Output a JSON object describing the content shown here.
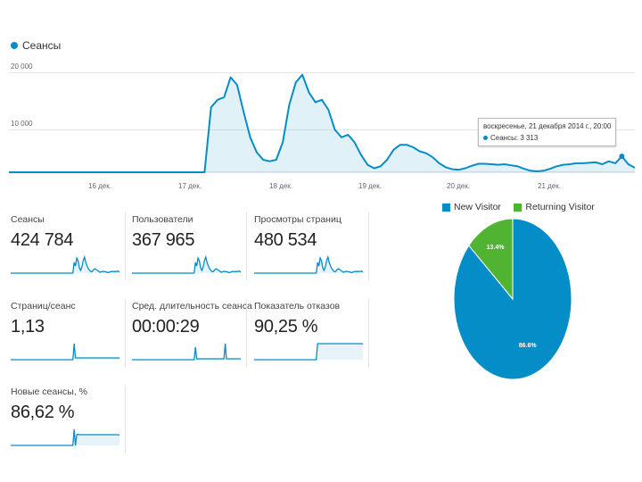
{
  "legend": {
    "label": "Сеансы",
    "color": "#058dc7"
  },
  "chart_data": [
    {
      "type": "area",
      "title": "Сеансы",
      "yticks": [
        "20 000",
        "10 000"
      ],
      "ylim": [
        0,
        20000
      ],
      "xticks": [
        "16 дек.",
        "17 дек.",
        "18 дек.",
        "19 дек.",
        "20 дек.",
        "21 дек."
      ],
      "series": [
        {
          "name": "Сеансы",
          "color": "#058dc7",
          "x_hours": [
            0,
            6,
            12,
            18,
            24,
            30,
            36,
            42,
            48,
            54,
            60,
            62,
            64,
            66,
            68,
            70,
            72,
            74,
            76,
            78,
            80,
            82,
            84,
            86,
            88,
            90,
            92,
            94,
            96,
            98,
            100,
            102,
            104,
            106,
            108,
            110,
            112,
            114,
            116,
            118,
            120,
            122,
            124,
            126,
            128,
            130,
            132,
            134,
            136,
            138,
            140,
            142,
            144,
            146,
            148,
            150,
            152,
            154,
            156,
            158,
            160,
            162,
            164,
            166,
            168,
            170,
            172,
            174,
            176,
            178,
            180,
            182,
            184,
            186,
            188,
            190,
            192
          ],
          "values": [
            0,
            0,
            0,
            0,
            0,
            0,
            0,
            0,
            0,
            0,
            0,
            13000,
            14500,
            15000,
            19000,
            17500,
            12000,
            7000,
            4000,
            2500,
            2200,
            2500,
            6000,
            13500,
            18000,
            19500,
            16000,
            14000,
            14500,
            12500,
            8500,
            7000,
            7500,
            6000,
            3500,
            1500,
            800,
            1200,
            2500,
            4500,
            5500,
            5500,
            5000,
            4200,
            3800,
            3000,
            1800,
            1000,
            600,
            500,
            800,
            1300,
            1700,
            1700,
            1600,
            1500,
            1600,
            1400,
            1200,
            700,
            300,
            200,
            300,
            700,
            1200,
            1500,
            1600,
            1800,
            1800,
            1900,
            2000,
            1600,
            2200,
            1800,
            3200,
            1600,
            900
          ]
        }
      ],
      "tooltip": {
        "title": "воскресенье, 21 декабря 2014 г., 20:00",
        "series_label": "Сеансы:",
        "value": "3 313"
      }
    },
    {
      "type": "pie",
      "legend": [
        "New Visitor",
        "Returning Visitor"
      ],
      "colors": [
        "#058dc7",
        "#50b432"
      ],
      "values": [
        86.6,
        13.4
      ],
      "labels": [
        "86.6%",
        "13.4%"
      ]
    }
  ],
  "metrics": [
    {
      "title": "Сеансы",
      "value": "424 784",
      "spark": [
        0,
        0,
        0,
        0,
        0,
        0,
        0,
        0,
        0,
        0,
        0,
        0,
        0,
        0,
        0,
        0,
        0,
        0,
        0,
        0,
        0,
        0,
        0,
        0,
        0,
        0,
        0,
        0,
        0,
        0,
        0,
        0,
        0,
        0,
        0,
        0,
        0,
        0,
        0,
        0,
        0,
        0,
        0,
        0,
        0,
        0,
        0,
        0,
        0,
        0.6,
        0.4,
        0.85,
        0.7,
        0.3,
        0.15,
        0.35,
        0.7,
        0.9,
        0.6,
        0.4,
        0.25,
        0.15,
        0.08,
        0.1,
        0.2,
        0.25,
        0.2,
        0.15,
        0.1,
        0.05,
        0.08,
        0.1,
        0.09,
        0.08,
        0.06,
        0.03,
        0.05,
        0.08,
        0.09,
        0.1,
        0.08,
        0.1,
        0.09,
        0.12,
        0.06
      ]
    },
    {
      "title": "Пользователи",
      "value": "367 965",
      "spark": [
        0,
        0,
        0,
        0,
        0,
        0,
        0,
        0,
        0,
        0,
        0,
        0,
        0,
        0,
        0,
        0,
        0,
        0,
        0,
        0,
        0,
        0,
        0,
        0,
        0,
        0,
        0,
        0,
        0,
        0,
        0,
        0,
        0,
        0,
        0,
        0,
        0,
        0,
        0,
        0,
        0,
        0,
        0,
        0,
        0,
        0,
        0,
        0,
        0,
        0.6,
        0.4,
        0.85,
        0.7,
        0.3,
        0.15,
        0.35,
        0.7,
        0.9,
        0.6,
        0.4,
        0.25,
        0.15,
        0.08,
        0.1,
        0.2,
        0.25,
        0.2,
        0.15,
        0.1,
        0.05,
        0.08,
        0.1,
        0.09,
        0.08,
        0.06,
        0.03,
        0.05,
        0.08,
        0.09,
        0.1,
        0.08,
        0.1,
        0.09,
        0.12,
        0.06
      ]
    },
    {
      "title": "Просмотры страниц",
      "value": "480 534",
      "spark": [
        0,
        0,
        0,
        0,
        0,
        0,
        0,
        0,
        0,
        0,
        0,
        0,
        0,
        0,
        0,
        0,
        0,
        0,
        0,
        0,
        0,
        0,
        0,
        0,
        0,
        0,
        0,
        0,
        0,
        0,
        0,
        0,
        0,
        0,
        0,
        0,
        0,
        0,
        0,
        0,
        0,
        0,
        0,
        0,
        0,
        0,
        0,
        0,
        0,
        0.6,
        0.4,
        0.85,
        0.7,
        0.3,
        0.15,
        0.35,
        0.7,
        0.9,
        0.6,
        0.4,
        0.25,
        0.15,
        0.08,
        0.1,
        0.2,
        0.25,
        0.2,
        0.15,
        0.1,
        0.05,
        0.08,
        0.1,
        0.09,
        0.08,
        0.06,
        0.03,
        0.05,
        0.08,
        0.09,
        0.1,
        0.08,
        0.1,
        0.09,
        0.12,
        0.06
      ]
    },
    {
      "title": "Страниц/сеанс",
      "value": "1,13",
      "spark": [
        0,
        0,
        0,
        0,
        0,
        0,
        0,
        0,
        0,
        0,
        0,
        0,
        0,
        0,
        0,
        0,
        0,
        0,
        0,
        0,
        0,
        0,
        0,
        0,
        0,
        0,
        0,
        0,
        0,
        0,
        0,
        0,
        0,
        0,
        0,
        0,
        0,
        0,
        0,
        0,
        0,
        0,
        0,
        0,
        0,
        0,
        0,
        0,
        0,
        0.9,
        0.1,
        0.1,
        0.1,
        0.1,
        0.1,
        0.1,
        0.1,
        0.1,
        0.1,
        0.1,
        0.1,
        0.1,
        0.1,
        0.1,
        0.1,
        0.1,
        0.1,
        0.1,
        0.1,
        0.1,
        0.1,
        0.1,
        0.1,
        0.1,
        0.1,
        0.1,
        0.1,
        0.1,
        0.1,
        0.1,
        0.1,
        0.1,
        0.1,
        0.1,
        0.1
      ]
    },
    {
      "title": "Сред. длительность сеанса",
      "value": "00:00:29",
      "spark": [
        0,
        0,
        0,
        0,
        0,
        0,
        0,
        0,
        0,
        0,
        0,
        0,
        0,
        0,
        0,
        0,
        0,
        0,
        0,
        0,
        0,
        0,
        0,
        0,
        0,
        0,
        0,
        0,
        0,
        0,
        0,
        0,
        0,
        0,
        0,
        0,
        0,
        0,
        0,
        0,
        0,
        0,
        0,
        0,
        0,
        0,
        0,
        0,
        0,
        0.7,
        0.05,
        0.05,
        0.05,
        0.05,
        0.05,
        0.05,
        0.05,
        0.05,
        0.05,
        0.05,
        0.05,
        0.05,
        0.05,
        0.05,
        0.05,
        0.05,
        0.05,
        0.05,
        0.05,
        0.05,
        0.05,
        0.05,
        0.9,
        0.05,
        0.05,
        0.05,
        0.05,
        0.05,
        0.05,
        0.05,
        0.05,
        0.05,
        0.05,
        0.05,
        0.05
      ]
    },
    {
      "title": "Показатель отказов",
      "value": "90,25 %",
      "spark": [
        0,
        0,
        0,
        0,
        0,
        0,
        0,
        0,
        0,
        0,
        0,
        0,
        0,
        0,
        0,
        0,
        0,
        0,
        0,
        0,
        0,
        0,
        0,
        0,
        0,
        0,
        0,
        0,
        0,
        0,
        0,
        0,
        0,
        0,
        0,
        0,
        0,
        0,
        0,
        0,
        0,
        0,
        0,
        0,
        0,
        0,
        0,
        0,
        0,
        0.9,
        0.9,
        0.9,
        0.9,
        0.9,
        0.9,
        0.9,
        0.9,
        0.9,
        0.9,
        0.9,
        0.9,
        0.9,
        0.9,
        0.9,
        0.9,
        0.9,
        0.9,
        0.9,
        0.9,
        0.9,
        0.9,
        0.9,
        0.9,
        0.9,
        0.9,
        0.9,
        0.9,
        0.9,
        0.9,
        0.9,
        0.9,
        0.9,
        0.9,
        0.9,
        0.88
      ]
    },
    {
      "title": "Новые сеансы, %",
      "value": "86,62 %",
      "spark": [
        0,
        0,
        0,
        0,
        0,
        0,
        0,
        0,
        0,
        0,
        0,
        0,
        0,
        0,
        0,
        0,
        0,
        0,
        0,
        0,
        0,
        0,
        0,
        0,
        0,
        0,
        0,
        0,
        0,
        0,
        0,
        0,
        0,
        0,
        0,
        0,
        0,
        0,
        0,
        0,
        0,
        0,
        0,
        0,
        0,
        0,
        0,
        0,
        0,
        0.9,
        0.0,
        0.6,
        0.62,
        0.6,
        0.6,
        0.6,
        0.6,
        0.6,
        0.6,
        0.6,
        0.6,
        0.6,
        0.6,
        0.6,
        0.6,
        0.6,
        0.6,
        0.6,
        0.6,
        0.6,
        0.6,
        0.6,
        0.6,
        0.6,
        0.6,
        0.6,
        0.6,
        0.6,
        0.6,
        0.6,
        0.6,
        0.6,
        0.6,
        0.6,
        0.58
      ]
    }
  ]
}
